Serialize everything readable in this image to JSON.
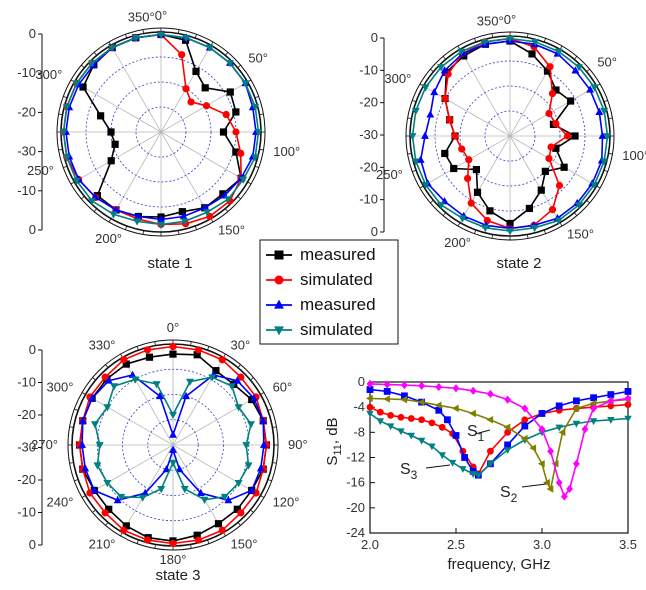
{
  "legend": [
    {
      "label": "measured",
      "color": "#000000",
      "marker": "square"
    },
    {
      "label": "simulated",
      "color": "#ff0000",
      "marker": "circle"
    },
    {
      "label": "measured",
      "color": "#0000ff",
      "marker": "triangle-up"
    },
    {
      "label": "simulated",
      "color": "#008080",
      "marker": "triangle-down"
    }
  ],
  "chart_data": [
    {
      "type": "polar",
      "caption": "state 1",
      "radial_ticks": [
        "0",
        "-10",
        "-20",
        "-30",
        "-10",
        "0"
      ],
      "radial_range_db": [
        -40,
        0
      ],
      "angle_labels": [
        {
          "deg": 350,
          "text": "350°"
        },
        {
          "deg": 0,
          "text": "0°"
        },
        {
          "deg": 50,
          "text": "50°"
        },
        {
          "deg": 100,
          "text": "100°"
        },
        {
          "deg": 150,
          "text": "150°"
        },
        {
          "deg": 200,
          "text": "200°"
        },
        {
          "deg": 250,
          "text": "250°"
        },
        {
          "deg": 300,
          "text": "300°"
        }
      ],
      "angles_deg": [
        0,
        15,
        30,
        45,
        60,
        75,
        90,
        105,
        120,
        135,
        150,
        165,
        180,
        195,
        210,
        225,
        240,
        255,
        270,
        285,
        300,
        315,
        330,
        345
      ],
      "series": [
        {
          "name": "measured",
          "color": "#000000",
          "marker": "square",
          "values_db": [
            -1,
            -2,
            -12,
            -15,
            -8,
            -9,
            -15,
            -9,
            -3,
            -5,
            -5,
            -7,
            -6,
            -5,
            -4,
            -4,
            -17,
            -21,
            -20,
            -15,
            -4,
            -2,
            -1,
            -1
          ]
        },
        {
          "name": "simulated",
          "color": "#ff0000",
          "marker": "circle",
          "values_db": [
            -1,
            -8,
            -20,
            -23,
            -19,
            -13,
            -10,
            -7,
            -3,
            -1,
            -1,
            -2,
            -3,
            -4,
            -4,
            -3,
            -2,
            -1,
            -1,
            -1,
            -1,
            -1,
            -1,
            -1
          ]
        },
        {
          "name": "measured",
          "color": "#0000ff",
          "marker": "triangle-up",
          "values_db": [
            -1,
            -1,
            -1,
            -1,
            -1,
            -2,
            -2,
            -2,
            -3,
            -4,
            -5,
            -5,
            -5,
            -5,
            -4,
            -3,
            -2,
            -2,
            -2,
            -2,
            -2,
            -2,
            -1,
            -1
          ]
        },
        {
          "name": "simulated",
          "color": "#008080",
          "marker": "triangle-down",
          "values_db": [
            -1,
            -1,
            -1,
            -1,
            -1,
            -1,
            -1,
            -1,
            -2,
            -2,
            -3,
            -3,
            -3,
            -3,
            -2,
            -1,
            -1,
            -1,
            -1,
            -1,
            -1,
            -1,
            -1,
            -1
          ]
        }
      ]
    },
    {
      "type": "polar",
      "caption": "state 2",
      "radial_ticks": [
        "0",
        "-10",
        "-20",
        "-30",
        "-20",
        "-10",
        "0"
      ],
      "radial_range_db": [
        -40,
        0
      ],
      "angle_labels": [
        {
          "deg": 350,
          "text": "350°"
        },
        {
          "deg": 0,
          "text": "0°"
        },
        {
          "deg": 50,
          "text": "50°"
        },
        {
          "deg": 100,
          "text": "100°"
        },
        {
          "deg": 150,
          "text": "150°"
        },
        {
          "deg": 200,
          "text": "200°"
        },
        {
          "deg": 250,
          "text": "250°"
        },
        {
          "deg": 300,
          "text": "300°"
        }
      ],
      "angles_deg": [
        0,
        15,
        30,
        45,
        60,
        75,
        90,
        105,
        120,
        135,
        150,
        165,
        180,
        195,
        210,
        225,
        240,
        255,
        270,
        285,
        300,
        315,
        330,
        345
      ],
      "series": [
        {
          "name": "measured",
          "color": "#000000",
          "marker": "square",
          "values_db": [
            -2,
            -6,
            -10,
            -14,
            -12,
            -22,
            -14,
            -21,
            -15,
            -20,
            -15,
            -10,
            -5,
            -9,
            -14,
            -21,
            -14,
            -13,
            -18,
            -15,
            -10,
            -4,
            -3,
            -2
          ]
        },
        {
          "name": "simulated",
          "color": "#ff0000",
          "marker": "circle",
          "values_db": [
            -1,
            -3,
            -8,
            -16,
            -22,
            -21,
            -17,
            -23,
            -22,
            -12,
            -6,
            -3,
            -3,
            -5,
            -9,
            -16,
            -21,
            -20,
            -18,
            -15,
            -10,
            -5,
            -2,
            -1
          ]
        },
        {
          "name": "measured",
          "color": "#0000ff",
          "marker": "triangle-up",
          "values_db": [
            -2,
            -2,
            -2,
            -3,
            -3,
            -3,
            -3,
            -2,
            -2,
            -2,
            -2,
            -3,
            -3,
            -3,
            -3,
            -3,
            -2,
            -3,
            -6,
            -7,
            -5,
            -3,
            -2,
            -2
          ]
        },
        {
          "name": "simulated",
          "color": "#008080",
          "marker": "triangle-down",
          "values_db": [
            -1,
            -1,
            -1,
            -1,
            -1,
            -1,
            -1,
            -1,
            -1,
            -1,
            -1,
            -2,
            -2,
            -2,
            -2,
            -1,
            -1,
            -1,
            -1,
            -1,
            -1,
            -1,
            -1,
            -1
          ]
        }
      ]
    },
    {
      "type": "polar",
      "caption": "state 3",
      "radial_ticks": [
        "0",
        "-10",
        "-20",
        "-30",
        "-20",
        "-10",
        "0"
      ],
      "radial_range_db": [
        -40,
        0
      ],
      "angle_labels": [
        {
          "deg": 330,
          "text": "330°"
        },
        {
          "deg": 0,
          "text": "0°"
        },
        {
          "deg": 30,
          "text": "30°"
        },
        {
          "deg": 60,
          "text": "60°"
        },
        {
          "deg": 90,
          "text": "90°"
        },
        {
          "deg": 120,
          "text": "120°"
        },
        {
          "deg": 150,
          "text": "150°"
        },
        {
          "deg": 180,
          "text": "180°"
        },
        {
          "deg": 210,
          "text": "210°"
        },
        {
          "deg": 240,
          "text": "240°"
        },
        {
          "deg": 270,
          "text": "270°"
        },
        {
          "deg": 300,
          "text": "300°"
        }
      ],
      "angles_deg": [
        0,
        15,
        30,
        45,
        60,
        75,
        90,
        105,
        120,
        135,
        150,
        165,
        180,
        195,
        210,
        225,
        240,
        255,
        270,
        285,
        300,
        315,
        330,
        345
      ],
      "series": [
        {
          "name": "measured",
          "color": "#000000",
          "marker": "square",
          "values_db": [
            -4,
            -3,
            -6,
            -6,
            -4,
            -3,
            -3,
            -3,
            -4,
            -4,
            -4,
            -3,
            -2,
            -2,
            -3,
            -4,
            -4,
            -3,
            -3,
            -3,
            -3,
            -3,
            -3,
            -4
          ]
        },
        {
          "name": "simulated",
          "color": "#ff0000",
          "marker": "circle",
          "values_db": [
            -1,
            -1,
            -1,
            -2,
            -2,
            -3,
            -3,
            -3,
            -2,
            -2,
            -1,
            -1,
            -1,
            -1,
            -1,
            -2,
            -2,
            -3,
            -3,
            -3,
            -2,
            -2,
            -1,
            -1
          ]
        },
        {
          "name": "measured",
          "color": "#0000ff",
          "marker": "triangle-up",
          "values_db": [
            -36,
            -20,
            -8,
            -4,
            -3,
            -3,
            -4,
            -4,
            -4,
            -9,
            -18,
            -30,
            -38,
            -30,
            -18,
            -9,
            -4,
            -4,
            -4,
            -3,
            -3,
            -4,
            -8,
            -20
          ]
        },
        {
          "name": "simulated",
          "color": "#008080",
          "marker": "triangle-down",
          "values_db": [
            -28,
            -14,
            -9,
            -7,
            -10,
            -8,
            -11,
            -9,
            -10,
            -11,
            -15,
            -22,
            -33,
            -22,
            -16,
            -11,
            -10,
            -9,
            -11,
            -8,
            -10,
            -7,
            -10,
            -15
          ]
        }
      ]
    },
    {
      "type": "line",
      "xlabel": "frequency, GHz",
      "ylabel": "S11, dB",
      "xlim": [
        2.0,
        3.5
      ],
      "ylim": [
        -24,
        0
      ],
      "x_ticks": [
        "2.0",
        "2.5",
        "3.0",
        "3.5"
      ],
      "y_ticks": [
        "0",
        "-4",
        "-8",
        "-12",
        "-16",
        "-20",
        "-24"
      ],
      "grid": false,
      "annotations": [
        {
          "text": "S1",
          "sub": "1",
          "base": "S"
        },
        {
          "text": "S2",
          "sub": "2",
          "base": "S"
        },
        {
          "text": "S3",
          "sub": "3",
          "base": "S"
        }
      ],
      "series": [
        {
          "color": "#ff0000",
          "marker": "circle",
          "x": [
            2.0,
            2.06,
            2.12,
            2.18,
            2.24,
            2.3,
            2.36,
            2.42,
            2.48,
            2.54,
            2.6,
            2.63,
            2.7,
            2.8,
            2.9,
            3.0,
            3.1,
            3.2,
            3.3,
            3.4,
            3.5
          ],
          "y": [
            -4,
            -4.8,
            -5.3,
            -5.6,
            -5.8,
            -6.0,
            -6.5,
            -7.2,
            -8.2,
            -11,
            -13.5,
            -14.6,
            -11,
            -8,
            -6,
            -5,
            -4.5,
            -4.2,
            -4.0,
            -3.8,
            -3.6
          ]
        },
        {
          "color": "#0000ff",
          "marker": "square",
          "x": [
            2.0,
            2.1,
            2.2,
            2.3,
            2.4,
            2.45,
            2.5,
            2.55,
            2.6,
            2.63,
            2.7,
            2.8,
            2.9,
            3.0,
            3.1,
            3.2,
            3.3,
            3.4,
            3.5
          ],
          "y": [
            -1.2,
            -1.5,
            -2.2,
            -3.2,
            -4.5,
            -6,
            -8.5,
            -12,
            -14.2,
            -14.8,
            -13,
            -10,
            -7,
            -5,
            -3.8,
            -3,
            -2.5,
            -2,
            -1.5
          ]
        },
        {
          "color": "#008080",
          "marker": "triangle-down",
          "x": [
            2.0,
            2.06,
            2.12,
            2.18,
            2.24,
            2.3,
            2.36,
            2.42,
            2.48,
            2.54,
            2.6,
            2.63,
            2.7,
            2.8,
            2.9,
            3.0,
            3.1,
            3.2,
            3.3,
            3.4,
            3.5
          ],
          "y": [
            -5,
            -6.2,
            -7,
            -7.8,
            -8.5,
            -9.3,
            -10.2,
            -11.6,
            -12.8,
            -13.8,
            -14.6,
            -14.8,
            -13,
            -10.8,
            -9.2,
            -8,
            -7.2,
            -6.6,
            -6.2,
            -6,
            -5.8
          ]
        },
        {
          "color": "#808000",
          "marker": "triangle-left",
          "x": [
            2.0,
            2.1,
            2.2,
            2.3,
            2.4,
            2.5,
            2.6,
            2.7,
            2.8,
            2.9,
            2.95,
            3.0,
            3.03,
            3.05,
            3.08,
            3.12,
            3.2,
            3.3,
            3.4,
            3.5
          ],
          "y": [
            -2.6,
            -2.7,
            -2.8,
            -3.2,
            -3.7,
            -4.2,
            -5,
            -6,
            -7.2,
            -9,
            -10.5,
            -13,
            -16,
            -17,
            -13,
            -8,
            -4.2,
            -3.4,
            -3.0,
            -2.8
          ]
        },
        {
          "color": "#ff00ff",
          "marker": "diamond",
          "x": [
            2.0,
            2.1,
            2.2,
            2.3,
            2.4,
            2.5,
            2.6,
            2.7,
            2.8,
            2.9,
            3.0,
            3.05,
            3.1,
            3.13,
            3.16,
            3.2,
            3.25,
            3.3,
            3.4,
            3.5
          ],
          "y": [
            -0.3,
            -0.4,
            -0.5,
            -0.6,
            -0.8,
            -1.0,
            -1.4,
            -1.9,
            -2.8,
            -4.2,
            -7.5,
            -11,
            -16,
            -18.2,
            -17,
            -13,
            -7.5,
            -4.2,
            -3,
            -2.6
          ]
        }
      ]
    }
  ]
}
